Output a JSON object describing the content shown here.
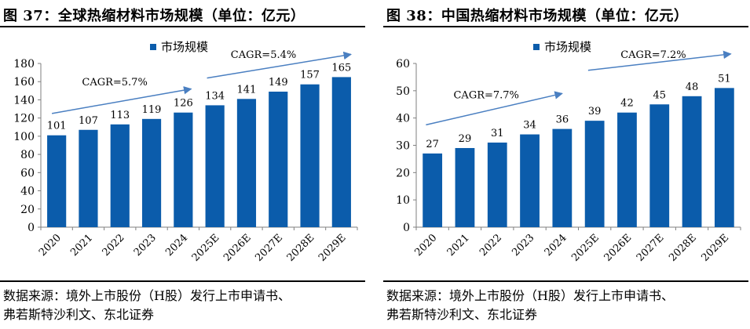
{
  "charts": [
    {
      "title": "图 37：全球热缩材料市场规模（单位：亿元）",
      "source_lines": [
        "数据来源：境外上市股份（H股）发行上市申请书、",
        "弗若斯特沙利文、东北证券"
      ],
      "cagr_labels": [
        "CAGR=5.7%",
        "CAGR=5.4%"
      ]
    },
    {
      "title": "图 38：中国热缩材料市场规模（单位：亿元）",
      "source_lines": [
        "数据来源：境外上市股份（H股）发行上市申请书、",
        "弗若斯特沙利文、东北证券"
      ],
      "cagr_labels": [
        "CAGR=7.7%",
        "CAGR=7.2%"
      ]
    }
  ],
  "colors": {
    "bar": "#0B5CAB",
    "arrow": "#4A7FC1",
    "axis": "#7F7F7F"
  },
  "chart_data": [
    {
      "type": "bar",
      "title": "图 37：全球热缩材料市场规模（单位：亿元）",
      "legend": "市场规模",
      "legend_position": "top",
      "categories": [
        "2020",
        "2021",
        "2022",
        "2023",
        "2024",
        "2025E",
        "2026E",
        "2027E",
        "2028E",
        "2029E"
      ],
      "series": [
        {
          "name": "市场规模",
          "values": [
            101,
            107,
            113,
            119,
            126,
            134,
            141,
            149,
            157,
            165
          ]
        }
      ],
      "ylim": [
        0,
        180
      ],
      "yticks": [
        0,
        20,
        40,
        60,
        80,
        100,
        120,
        140,
        160,
        180
      ],
      "annotations": [
        "CAGR=5.7%",
        "CAGR=5.4%"
      ],
      "grid": false
    },
    {
      "type": "bar",
      "title": "图 38：中国热缩材料市场规模（单位：亿元）",
      "legend": "市场规模",
      "legend_position": "top",
      "categories": [
        "2020",
        "2021",
        "2022",
        "2023",
        "2024",
        "2025E",
        "2026E",
        "2027E",
        "2028E",
        "2029E"
      ],
      "series": [
        {
          "name": "市场规模",
          "values": [
            27,
            29,
            31,
            34,
            36,
            39,
            42,
            45,
            48,
            51
          ]
        }
      ],
      "ylim": [
        0,
        60
      ],
      "yticks": [
        0,
        10,
        20,
        30,
        40,
        50,
        60
      ],
      "annotations": [
        "CAGR=7.7%",
        "CAGR=7.2%"
      ],
      "grid": false
    }
  ]
}
